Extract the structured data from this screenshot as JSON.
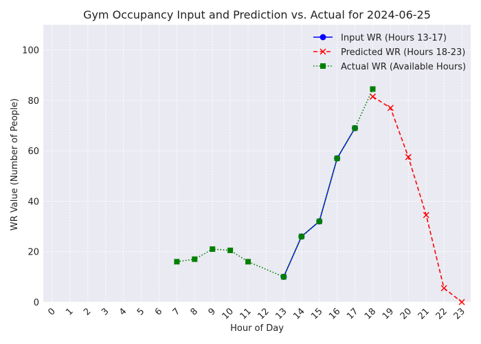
{
  "chart_data": {
    "type": "line",
    "title": "Gym Occupancy Input and Prediction vs. Actual for 2024-06-25",
    "xlabel": "Hour of Day",
    "ylabel": "WR Value (Number of People)",
    "xlim": [
      -0.5,
      23.5
    ],
    "ylim": [
      0,
      110
    ],
    "xticks": [
      "0",
      "1",
      "2",
      "3",
      "4",
      "5",
      "6",
      "7",
      "8",
      "9",
      "10",
      "11",
      "12",
      "13",
      "14",
      "15",
      "16",
      "17",
      "18",
      "19",
      "20",
      "21",
      "22",
      "23"
    ],
    "yticks": [
      0,
      20,
      40,
      60,
      80,
      100
    ],
    "grid": true,
    "legend_position": "top-right",
    "series": [
      {
        "name": "Input WR (Hours 13-17)",
        "color": "#0000ff",
        "style": "solid",
        "marker": "circle",
        "x": [
          13,
          14,
          15,
          16,
          17
        ],
        "y": [
          10,
          26,
          32,
          57,
          69
        ]
      },
      {
        "name": "Predicted WR (Hours 18-23)",
        "color": "#ff0000",
        "style": "dashed",
        "marker": "x",
        "x": [
          18,
          19,
          20,
          21,
          22,
          23
        ],
        "y": [
          81.5,
          77,
          57.5,
          34.5,
          5.5,
          0
        ]
      },
      {
        "name": "Actual WR (Available Hours)",
        "color": "#008000",
        "style": "dotted",
        "marker": "square",
        "x": [
          7,
          8,
          9,
          10,
          11,
          13,
          14,
          15,
          16,
          17,
          18
        ],
        "y": [
          16,
          17,
          21,
          20.5,
          16,
          10,
          26,
          32,
          57,
          69,
          84.5
        ]
      }
    ]
  }
}
